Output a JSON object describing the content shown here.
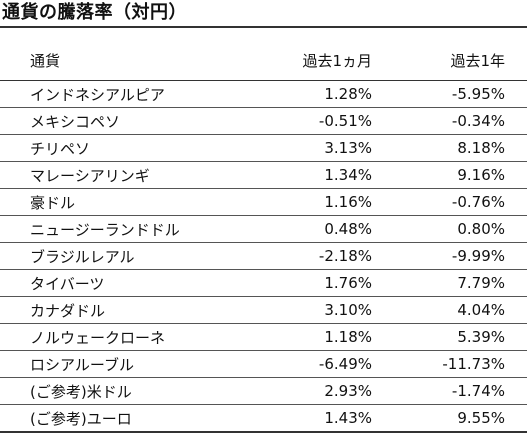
{
  "title": "通貨の騰落率（対円）",
  "columns": [
    "通貨",
    "過去1ヵ月",
    "過去1年"
  ],
  "rows": [
    {
      "currency": "インドネシアルピア",
      "m1": "1.28%",
      "y1": "-5.95%"
    },
    {
      "currency": "メキシコペソ",
      "m1": "-0.51%",
      "y1": "-0.34%"
    },
    {
      "currency": "チリペソ",
      "m1": "3.13%",
      "y1": "8.18%"
    },
    {
      "currency": "マレーシアリンギ",
      "m1": "1.34%",
      "y1": "9.16%"
    },
    {
      "currency": "豪ドル",
      "m1": "1.16%",
      "y1": "-0.76%"
    },
    {
      "currency": "ニュージーランドドル",
      "m1": "0.48%",
      "y1": "0.80%"
    },
    {
      "currency": "ブラジルレアル",
      "m1": "-2.18%",
      "y1": "-9.99%"
    },
    {
      "currency": "タイバーツ",
      "m1": "1.76%",
      "y1": "7.79%"
    },
    {
      "currency": "カナダドル",
      "m1": "3.10%",
      "y1": "4.04%"
    },
    {
      "currency": "ノルウェークローネ",
      "m1": "1.18%",
      "y1": "5.39%"
    },
    {
      "currency": "ロシアルーブル",
      "m1": "-6.49%",
      "y1": "-11.73%"
    },
    {
      "currency": "(ご参考)米ドル",
      "m1": "2.93%",
      "y1": "-1.74%"
    },
    {
      "currency": "(ご参考)ユーロ",
      "m1": "1.43%",
      "y1": "9.55%"
    }
  ]
}
